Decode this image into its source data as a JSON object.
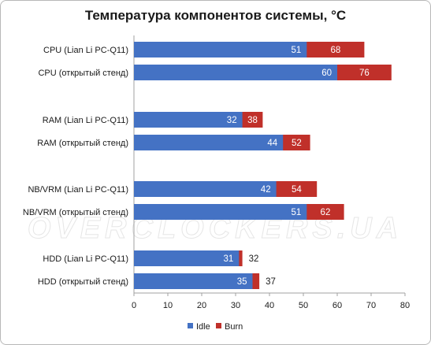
{
  "chart_data": {
    "type": "bar",
    "orientation": "horizontal",
    "stacked": "overlay",
    "title": "Температура компонентов системы, °C",
    "categories": [
      "CPU (Lian Li PC-Q11)",
      "CPU (открытый стенд)",
      "RAM (Lian Li PC-Q11)",
      "RAM (открытый стенд)",
      "NB/VRM (Lian Li PC-Q11)",
      "NB/VRM (открытый стенд)",
      "HDD (Lian Li PC-Q11)",
      "HDD (открытый стенд)"
    ],
    "groups": [
      [
        0,
        1
      ],
      [
        2,
        3
      ],
      [
        4,
        5
      ],
      [
        6,
        7
      ]
    ],
    "series": [
      {
        "name": "Idle",
        "color": "#4472c4",
        "values": [
          51,
          60,
          32,
          44,
          42,
          51,
          31,
          35
        ]
      },
      {
        "name": "Burn",
        "color": "#c0302a",
        "values": [
          68,
          76,
          38,
          52,
          54,
          62,
          32,
          37
        ]
      }
    ],
    "xlim": [
      0,
      80
    ],
    "xticks": [
      "0",
      "10",
      "20",
      "30",
      "40",
      "50",
      "60",
      "70",
      "80"
    ],
    "grid": false,
    "legend_position": "bottom",
    "watermark": "OVERCLOCKERS.UA"
  }
}
